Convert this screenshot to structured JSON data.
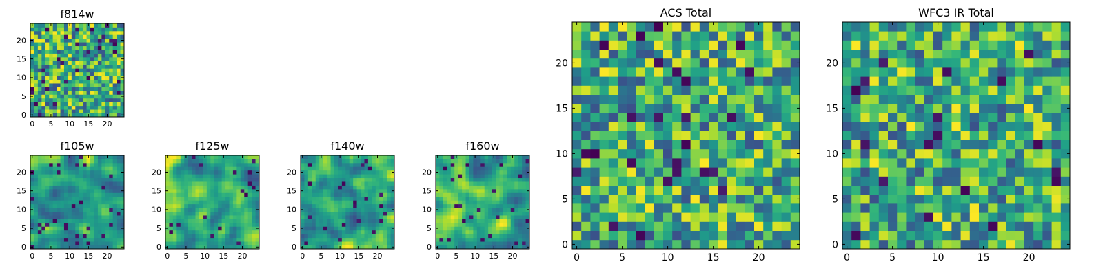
{
  "chart_data": [
    {
      "type": "heatmap",
      "title": "f814w",
      "grid": [
        25,
        25
      ],
      "colormap": "viridis",
      "xlim": [
        0,
        25
      ],
      "ylim": [
        0,
        25
      ],
      "xticks": [
        "0",
        "5",
        "10",
        "15",
        "20"
      ],
      "yticks": [
        "0",
        "5",
        "10",
        "15",
        "20"
      ],
      "seed": 11,
      "smooth": 0,
      "dark_fraction": 0.05
    },
    {
      "type": "heatmap",
      "title": "f105w",
      "grid": [
        25,
        25
      ],
      "colormap": "viridis",
      "xlim": [
        0,
        25
      ],
      "ylim": [
        0,
        25
      ],
      "xticks": [
        "0",
        "5",
        "10",
        "15",
        "20"
      ],
      "yticks": [
        "0",
        "5",
        "10",
        "15",
        "20"
      ],
      "seed": 23,
      "smooth": 2,
      "dark_fraction": 0.04
    },
    {
      "type": "heatmap",
      "title": "f125w",
      "grid": [
        25,
        25
      ],
      "colormap": "viridis",
      "xlim": [
        0,
        25
      ],
      "ylim": [
        0,
        25
      ],
      "xticks": [
        "0",
        "5",
        "10",
        "15",
        "20"
      ],
      "yticks": [
        "0",
        "5",
        "10",
        "15",
        "20"
      ],
      "seed": 37,
      "smooth": 2,
      "dark_fraction": 0.03
    },
    {
      "type": "heatmap",
      "title": "f140w",
      "grid": [
        25,
        25
      ],
      "colormap": "viridis",
      "xlim": [
        0,
        25
      ],
      "ylim": [
        0,
        25
      ],
      "xticks": [
        "0",
        "5",
        "10",
        "15",
        "20"
      ],
      "yticks": [
        "0",
        "5",
        "10",
        "15",
        "20"
      ],
      "seed": 41,
      "smooth": 2,
      "dark_fraction": 0.04
    },
    {
      "type": "heatmap",
      "title": "f160w",
      "grid": [
        25,
        25
      ],
      "colormap": "viridis",
      "xlim": [
        0,
        25
      ],
      "ylim": [
        0,
        25
      ],
      "xticks": [
        "0",
        "5",
        "10",
        "15",
        "20"
      ],
      "yticks": [
        "0",
        "5",
        "10",
        "15",
        "20"
      ],
      "seed": 53,
      "smooth": 2,
      "dark_fraction": 0.05
    },
    {
      "type": "heatmap",
      "title": "ACS Total",
      "grid": [
        25,
        25
      ],
      "colormap": "viridis",
      "xlim": [
        0,
        25
      ],
      "ylim": [
        0,
        25
      ],
      "xticks": [
        "0",
        "5",
        "10",
        "15",
        "20"
      ],
      "yticks": [
        "0",
        "5",
        "10",
        "15",
        "20"
      ],
      "seed": 67,
      "smooth": 0,
      "dark_fraction": 0.03
    },
    {
      "type": "heatmap",
      "title": "WFC3 IR Total",
      "grid": [
        25,
        25
      ],
      "colormap": "viridis",
      "xlim": [
        0,
        25
      ],
      "ylim": [
        0,
        25
      ],
      "xticks": [
        "0",
        "5",
        "10",
        "15",
        "20"
      ],
      "yticks": [
        "0",
        "5",
        "10",
        "15",
        "20"
      ],
      "seed": 79,
      "smooth": 0,
      "dark_fraction": 0.04
    }
  ]
}
